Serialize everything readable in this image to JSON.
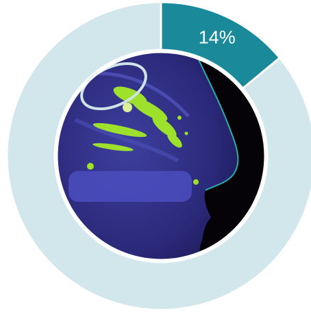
{
  "chart_data": {
    "type": "pie",
    "style": "donut",
    "slices": [
      {
        "value": 14,
        "label": "14%",
        "color": "#1a8a9a"
      },
      {
        "value": 86,
        "label": "",
        "color": "#d2e7ec"
      }
    ],
    "start_angle_deg": 0,
    "direction": "clockwise",
    "center_image": {
      "icon": "nasal-cavity-fluorescence-image",
      "highlight": "olfactory-region-ellipse",
      "highlight_color": "#cfe3e8"
    }
  }
}
